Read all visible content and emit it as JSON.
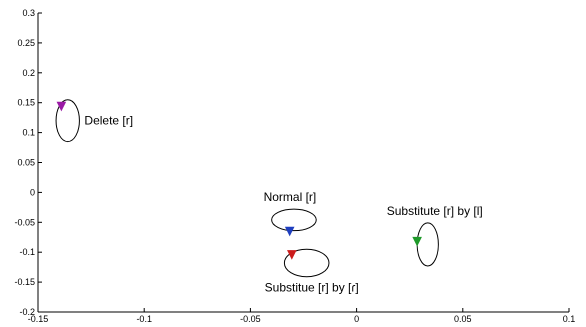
{
  "chart_data": {
    "type": "scatter",
    "title": "",
    "xlabel": "",
    "ylabel": "",
    "xlim": [
      -0.15,
      0.1
    ],
    "ylim": [
      -0.2,
      0.3
    ],
    "x_ticks": [
      "-0.15",
      "-0.1",
      "-0.05",
      "0",
      "0.05",
      "0.1"
    ],
    "y_ticks": [
      "0.3",
      "0.25",
      "0.2",
      "0.15",
      "0.1",
      "0.05",
      "0",
      "-0.05",
      "-0.1",
      "-0.15",
      "-0.2"
    ],
    "grid": false,
    "marker": "triangle-down",
    "points": [
      {
        "label": "Delete [r]",
        "x": -0.139,
        "y": 0.144,
        "color": "#9b1aa6",
        "ellipse_center": [
          -0.136,
          0.12
        ],
        "ellipse_radii": [
          0.0055,
          0.035
        ],
        "label_anchor": "right"
      },
      {
        "label": "Normal [r]",
        "x": -0.0315,
        "y": -0.065,
        "color": "#1f3fbf",
        "ellipse_center": [
          -0.0295,
          -0.046
        ],
        "ellipse_radii": [
          0.0105,
          0.018
        ],
        "label_anchor": "above"
      },
      {
        "label": "Substitue [r] by [ɾ]",
        "x": -0.0305,
        "y": -0.104,
        "color": "#cc1c1c",
        "ellipse_center": [
          -0.0235,
          -0.118
        ],
        "ellipse_radii": [
          0.0105,
          0.023
        ],
        "label_anchor": "below"
      },
      {
        "label": "Substitute [r] by [l]",
        "x": 0.0285,
        "y": -0.082,
        "color": "#1f9a2a",
        "ellipse_center": [
          0.0335,
          -0.087
        ],
        "ellipse_radii": [
          0.005,
          0.036
        ],
        "label_anchor": "above"
      }
    ]
  }
}
